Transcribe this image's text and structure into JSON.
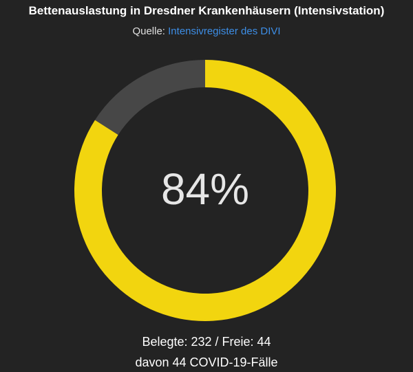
{
  "chart_data": {
    "type": "donut",
    "title": "Bettenauslastung in Dresdner Krankenhäusern (Intensivstation)",
    "source_prefix": "Quelle:",
    "source_link": "Intensivregister des DIVI",
    "values": [
      232,
      44
    ],
    "colors": [
      "#f2d50f",
      "#474747"
    ],
    "center_label": "84%",
    "footer": [
      "Belegte: 232 / Freie: 44",
      "davon 44 COVID-19-Fälle"
    ]
  }
}
